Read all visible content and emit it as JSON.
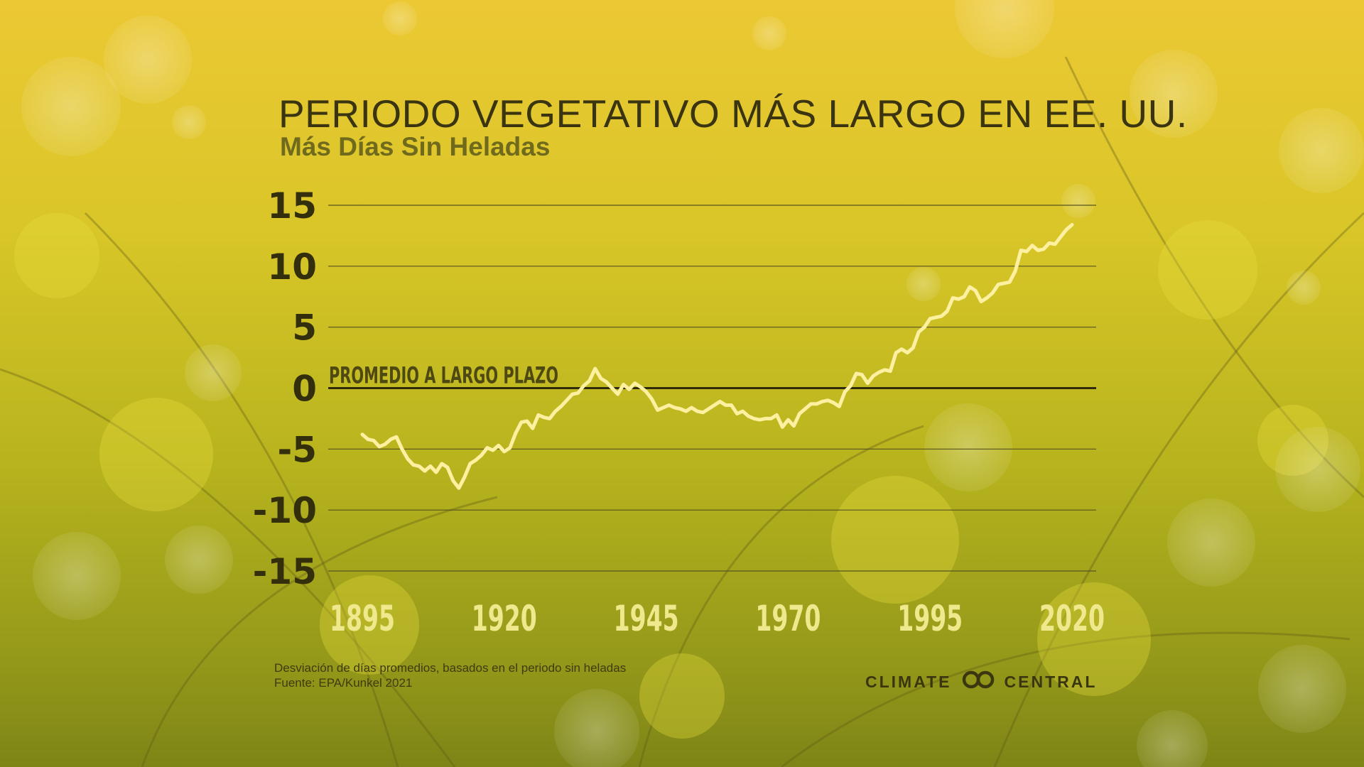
{
  "header": {
    "title": "PERIODO VEGETATIVO MÁS LARGO EN EE. UU.",
    "subtitle": "Más Días Sin Heladas"
  },
  "footer": {
    "note": "Desviación de días promedios, basados en el periodo sin heladas",
    "source": "Fuente: EPA/Kunkel 2021",
    "brand_left": "CLIMATE",
    "brand_right": "CENTRAL"
  },
  "colors": {
    "line": "#fdf0a0",
    "grid": "#575320",
    "zero": "#2f2b0c",
    "text_dark": "#332f0c",
    "text_light": "#efe88c"
  },
  "chart_data": {
    "type": "line",
    "title": "PERIODO VEGETATIVO MÁS LARGO EN EE. UU.",
    "subtitle": "Más Días Sin Heladas",
    "ylim": [
      -15,
      15
    ],
    "xlim": [
      1895,
      2020
    ],
    "y_ticks": [
      "15",
      "10",
      "5",
      "0",
      "-5",
      "-10",
      "-15"
    ],
    "x_ticks": [
      "1895",
      "1920",
      "1945",
      "1970",
      "1995",
      "2020"
    ],
    "reference_line": {
      "value": 0,
      "label": "PROMEDIO A LARGO PLAZO"
    },
    "grid": true,
    "series": [
      {
        "x": [
          1895,
          1896,
          1897,
          1898,
          1899,
          1900,
          1901,
          1902,
          1903,
          1904,
          1905,
          1906,
          1907,
          1908,
          1909,
          1910,
          1911,
          1912,
          1913,
          1914,
          1915,
          1916,
          1917,
          1918,
          1919,
          1920,
          1921,
          1922,
          1923,
          1924,
          1925,
          1926,
          1927,
          1928,
          1929,
          1930,
          1931,
          1932,
          1933,
          1934,
          1935,
          1936,
          1937,
          1938,
          1939,
          1940,
          1941,
          1942,
          1943,
          1944,
          1945,
          1946,
          1947,
          1948,
          1949,
          1950,
          1951,
          1952,
          1953,
          1954,
          1955,
          1956,
          1957,
          1958,
          1959,
          1960,
          1961,
          1962,
          1963,
          1964,
          1965,
          1966,
          1967,
          1968,
          1969,
          1970,
          1971,
          1972,
          1973,
          1974,
          1975,
          1976,
          1977,
          1978,
          1979,
          1980,
          1981,
          1982,
          1983,
          1984,
          1985,
          1986,
          1987,
          1988,
          1989,
          1990,
          1991,
          1992,
          1993,
          1994,
          1995,
          1996,
          1997,
          1998,
          1999,
          2000,
          2001,
          2002,
          2003,
          2004,
          2005,
          2006,
          2007,
          2008,
          2009,
          2010,
          2011,
          2012,
          2013,
          2014,
          2015,
          2016,
          2017,
          2018,
          2019,
          2020
        ],
        "values": [
          -3.8,
          -4.2,
          -4.3,
          -4.8,
          -4.6,
          -4.2,
          -4.0,
          -5.0,
          -5.8,
          -6.3,
          -6.4,
          -6.8,
          -6.4,
          -6.9,
          -6.2,
          -6.5,
          -7.6,
          -8.2,
          -7.3,
          -6.2,
          -5.9,
          -5.5,
          -4.9,
          -5.1,
          -4.7,
          -5.2,
          -4.9,
          -3.7,
          -2.8,
          -2.7,
          -3.3,
          -2.2,
          -2.4,
          -2.5,
          -1.9,
          -1.5,
          -1.0,
          -0.5,
          -0.4,
          0.2,
          0.6,
          1.6,
          0.8,
          0.5,
          0.0,
          -0.5,
          0.3,
          -0.1,
          0.4,
          0.1,
          -0.3,
          -0.9,
          -1.8,
          -1.6,
          -1.4,
          -1.6,
          -1.7,
          -1.9,
          -1.6,
          -1.9,
          -2.0,
          -1.7,
          -1.4,
          -1.1,
          -1.4,
          -1.4,
          -2.1,
          -1.9,
          -2.3,
          -2.5,
          -2.6,
          -2.5,
          -2.5,
          -2.2,
          -3.2,
          -2.6,
          -3.1,
          -2.1,
          -1.7,
          -1.3,
          -1.3,
          -1.1,
          -1.0,
          -1.2,
          -1.5,
          -0.3,
          0.2,
          1.2,
          1.1,
          0.4,
          1.0,
          1.3,
          1.5,
          1.4,
          2.9,
          3.2,
          2.9,
          3.3,
          4.6,
          5.0,
          5.7,
          5.8,
          5.9,
          6.3,
          7.4,
          7.3,
          7.5,
          8.3,
          8.0,
          7.1,
          7.4,
          7.8,
          8.5,
          8.6,
          8.7,
          9.6,
          11.3,
          11.2,
          11.7,
          11.3,
          11.4,
          11.9,
          11.8,
          12.4,
          13.0,
          13.4
        ]
      }
    ]
  }
}
